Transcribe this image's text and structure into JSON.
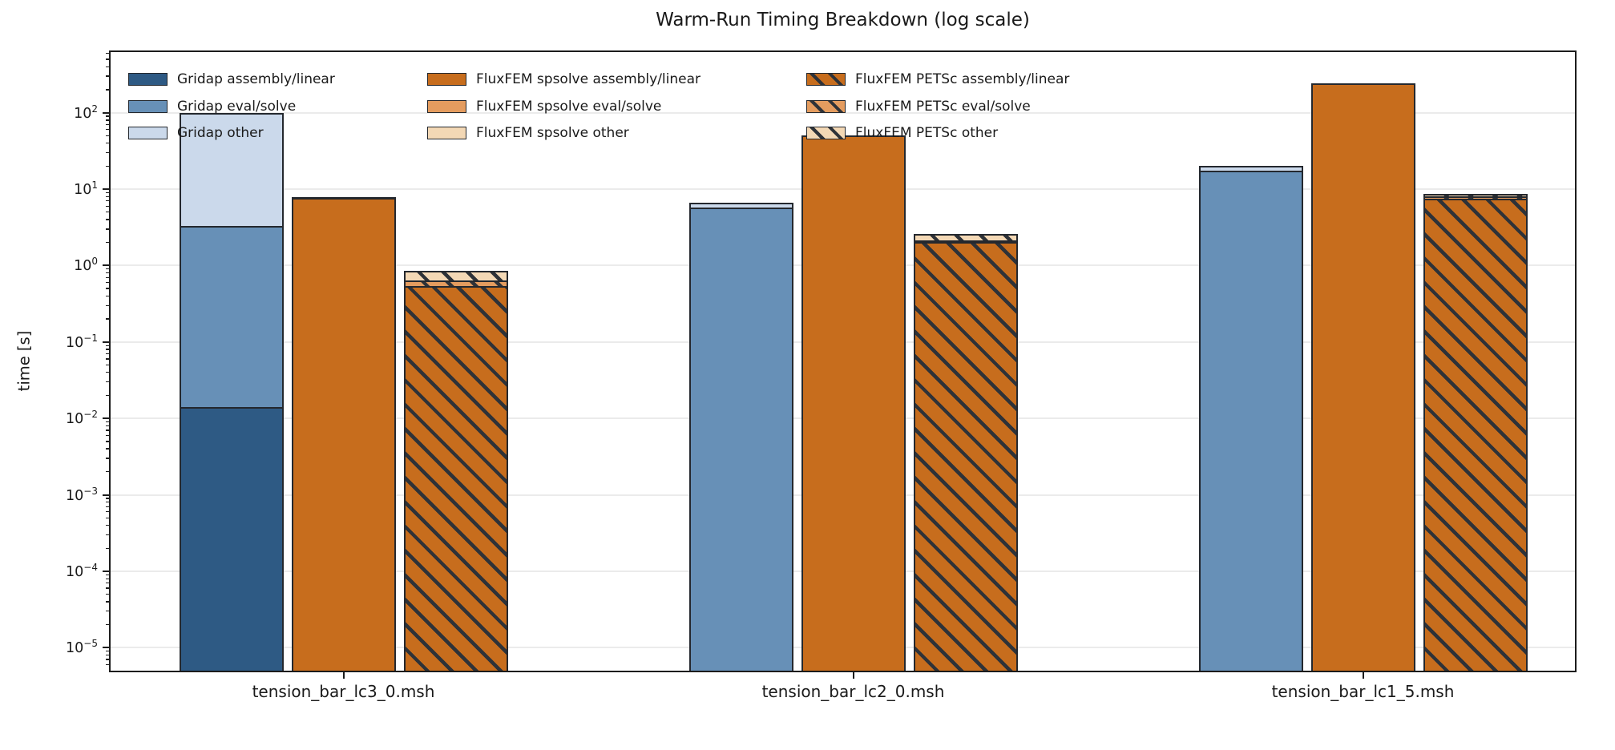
{
  "chart_data": {
    "type": "bar",
    "stacked": true,
    "y_scale": "log",
    "title": "Warm-Run Timing Breakdown (log scale)",
    "ylabel": "time [s]",
    "xlabel": "",
    "categories": [
      "tension_bar_lc3_0.msh",
      "tension_bar_lc2_0.msh",
      "tension_bar_lc1_5.msh"
    ],
    "ylim": [
      5e-06,
      620
    ],
    "y_tick_exponents": [
      2,
      1,
      0,
      -1,
      -2,
      -3,
      -4,
      -5
    ],
    "grid": "horizontal-major-on",
    "legend": {
      "position": "upper-left-inside",
      "columns": 3,
      "frame": false
    },
    "colors": {
      "blue_dark": "#2E5A84",
      "blue_mid": "#6790B7",
      "blue_light": "#CBD9EB",
      "orange_dark": "#C76D1D",
      "orange_mid": "#E49C5F",
      "orange_light": "#F3D8B5",
      "bar_edge": "#24282e",
      "hatch_line": "#2E3238",
      "gridline": "#ebebeb",
      "spine": "#1c1c1c"
    },
    "bars": [
      {
        "name": "Gridap",
        "hatch": false,
        "segments": [
          {
            "label": "Gridap assembly/linear",
            "color": "#2E5A84",
            "values": [
              0.014,
              0,
              0
            ]
          },
          {
            "label": "Gridap eval/solve",
            "color": "#6790B7",
            "values": [
              3.3,
              5.7,
              17.5
            ]
          },
          {
            "label": "Gridap other",
            "color": "#CBD9EB",
            "values": [
              95,
              1.0,
              2.4
            ]
          }
        ]
      },
      {
        "name": "FluxFEM spsolve",
        "hatch": false,
        "segments": [
          {
            "label": "FluxFEM spsolve assembly/linear",
            "color": "#C76D1D",
            "values": [
              7.6,
              50,
              240
            ]
          },
          {
            "label": "FluxFEM spsolve eval/solve",
            "color": "#E49C5F",
            "values": [
              0.12,
              0.6,
              2
            ]
          },
          {
            "label": "FluxFEM spsolve other",
            "color": "#F3D8B5",
            "values": [
              0.06,
              0.3,
              1
            ]
          }
        ]
      },
      {
        "name": "FluxFEM PETSc",
        "hatch": true,
        "segments": [
          {
            "label": "FluxFEM PETSc assembly/linear",
            "color": "#C76D1D",
            "values": [
              0.54,
              2.05,
              7.5
            ]
          },
          {
            "label": "FluxFEM PETSc eval/solve",
            "color": "#E49C5F",
            "values": [
              0.1,
              0.1,
              0.55
            ]
          },
          {
            "label": "FluxFEM PETSc other",
            "color": "#F3D8B5",
            "values": [
              0.21,
              0.46,
              0.6
            ]
          }
        ]
      }
    ]
  }
}
